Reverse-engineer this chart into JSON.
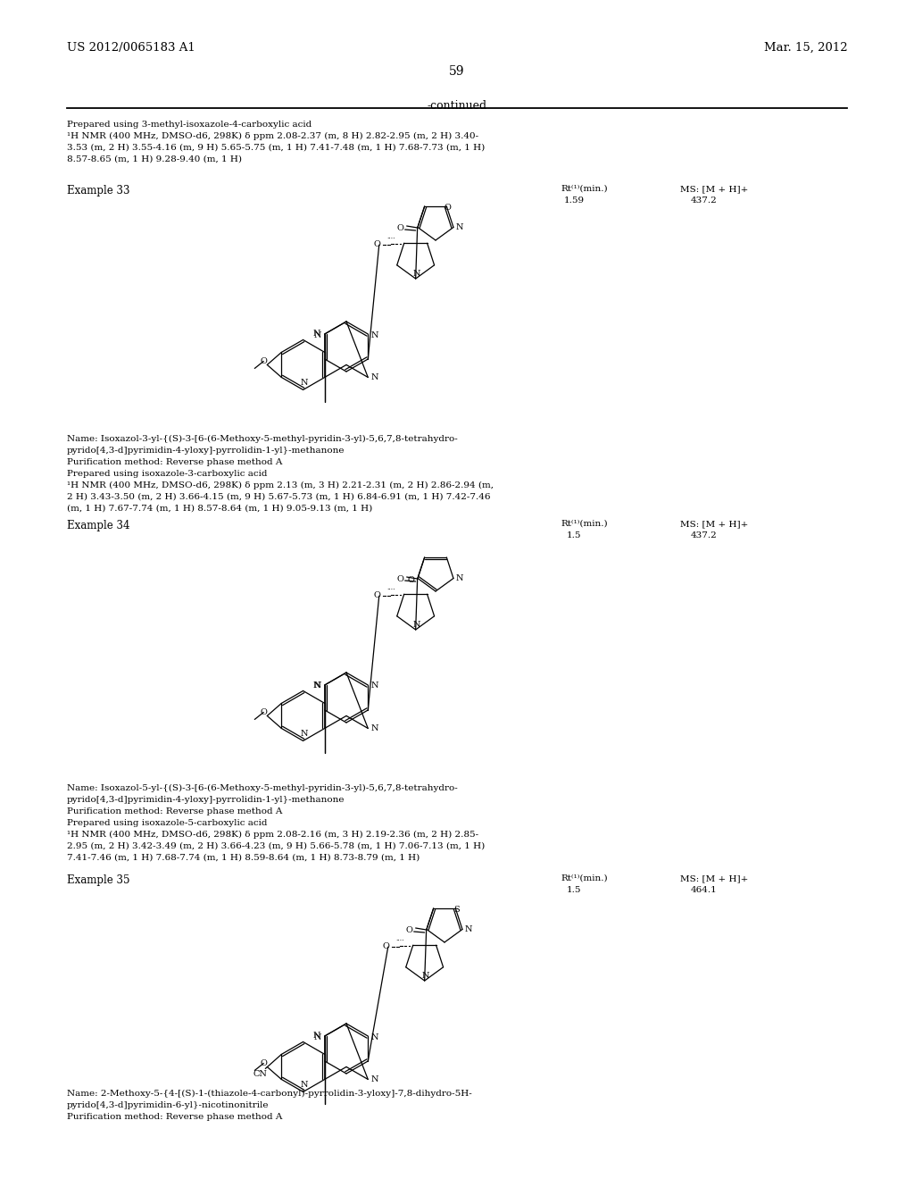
{
  "background_color": "#ffffff",
  "header_left": "US 2012/0065183 A1",
  "header_right": "Mar. 15, 2012",
  "page_number": "59",
  "continued_text": "-continued",
  "prep_line0": "Prepared using 3-methyl-isoxazole-4-carboxylic acid",
  "prep_line1": "¹H NMR (400 MHz, DMSO-d6, 298K) δ ppm 2.08-2.37 (m, 8 H) 2.82-2.95 (m, 2 H) 3.40-",
  "prep_line2": "3.53 (m, 2 H) 3.55-4.16 (m, 9 H) 5.65-5.75 (m, 1 H) 7.41-7.48 (m, 1 H) 7.68-7.73 (m, 1 H)",
  "prep_line3": "8.57-8.65 (m, 1 H) 9.28-9.40 (m, 1 H)",
  "ex33_label": "Example 33",
  "ex33_rt_label": "Rt⁽¹⁾(min.)",
  "ex33_rt_val": "1.59",
  "ex33_ms_label": "MS: [M + H]+",
  "ex33_ms_val": "437.2",
  "ex33_name1": "Name: Isoxazol-3-yl-{(S)-3-[6-(6-Methoxy-5-methyl-pyridin-3-yl)-5,6,7,8-tetrahydro-",
  "ex33_name2": "pyrido[4,3-d]pyrimidin-4-yloxy]-pyrrolidin-1-yl}-methanone",
  "ex33_purif": "Purification method: Reverse phase method A",
  "ex33_prep": "Prepared using isoxazole-3-carboxylic acid",
  "ex33_nmr1": "¹H NMR (400 MHz, DMSO-d6, 298K) δ ppm 2.13 (m, 3 H) 2.21-2.31 (m, 2 H) 2.86-2.94 (m,",
  "ex33_nmr2": "2 H) 3.43-3.50 (m, 2 H) 3.66-4.15 (m, 9 H) 5.67-5.73 (m, 1 H) 6.84-6.91 (m, 1 H) 7.42-7.46",
  "ex33_nmr3": "(m, 1 H) 7.67-7.74 (m, 1 H) 8.57-8.64 (m, 1 H) 9.05-9.13 (m, 1 H)",
  "ex34_label": "Example 34",
  "ex34_rt_label": "Rt⁽¹⁾(min.)",
  "ex34_rt_val": "1.5",
  "ex34_ms_label": "MS: [M + H]+",
  "ex34_ms_val": "437.2",
  "ex34_name1": "Name: Isoxazol-5-yl-{(S)-3-[6-(6-Methoxy-5-methyl-pyridin-3-yl)-5,6,7,8-tetrahydro-",
  "ex34_name2": "pyrido[4,3-d]pyrimidin-4-yloxy]-pyrrolidin-1-yl}-methanone",
  "ex34_purif": "Purification method: Reverse phase method A",
  "ex34_prep": "Prepared using isoxazole-5-carboxylic acid",
  "ex34_nmr1": "¹H NMR (400 MHz, DMSO-d6, 298K) δ ppm 2.08-2.16 (m, 3 H) 2.19-2.36 (m, 2 H) 2.85-",
  "ex34_nmr2": "2.95 (m, 2 H) 3.42-3.49 (m, 2 H) 3.66-4.23 (m, 9 H) 5.66-5.78 (m, 1 H) 7.06-7.13 (m, 1 H)",
  "ex34_nmr3": "7.41-7.46 (m, 1 H) 7.68-7.74 (m, 1 H) 8.59-8.64 (m, 1 H) 8.73-8.79 (m, 1 H)",
  "ex35_label": "Example 35",
  "ex35_rt_label": "Rt⁽¹⁾(min.)",
  "ex35_rt_val": "1.5",
  "ex35_ms_label": "MS: [M + H]+",
  "ex35_ms_val": "464.1",
  "ex35_name1": "Name: 2-Methoxy-5-{4-[(S)-1-(thiazole-4-carbonyl)-pyrrolidin-3-yloxy]-7,8-dihydro-5H-",
  "ex35_name2": "pyrido[4,3-d]pyrimidin-6-yl}-nicotinonitrile",
  "ex35_purif": "Purification method: Reverse phase method A"
}
